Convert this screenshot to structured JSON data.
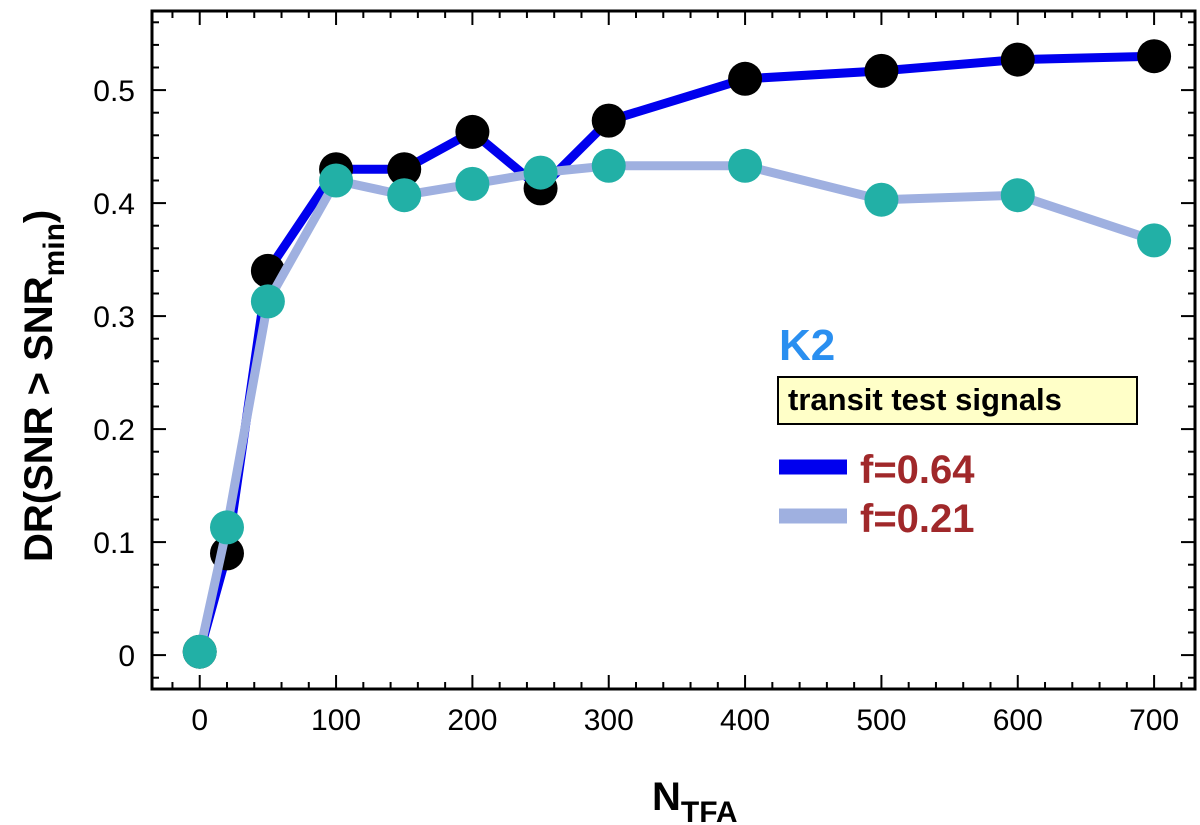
{
  "chart_data": {
    "type": "line",
    "x": [
      0,
      20,
      50,
      100,
      150,
      200,
      250,
      300,
      400,
      500,
      600,
      700
    ],
    "series": [
      {
        "name": "f=0.64",
        "values": [
          0.003,
          0.09,
          0.34,
          0.43,
          0.43,
          0.463,
          0.413,
          0.473,
          0.51,
          0.517,
          0.527,
          0.53
        ],
        "line_color": "#0000ee",
        "marker_color": "#000000"
      },
      {
        "name": "f=0.21",
        "values": [
          0.003,
          0.113,
          0.313,
          0.42,
          0.407,
          0.417,
          0.427,
          0.433,
          0.433,
          0.403,
          0.407,
          0.367
        ],
        "line_color": "#9fb0e0",
        "marker_color": "#22b0a6"
      }
    ],
    "xlabel": {
      "main": "N",
      "sub": "TFA"
    },
    "ylabel": {
      "main": "DR(SNR > SNR",
      "sub": "min",
      "close": ")"
    },
    "xlim": [
      -35,
      730
    ],
    "ylim": [
      -0.03,
      0.57
    ],
    "xticks": [
      0,
      100,
      200,
      300,
      400,
      500,
      600,
      700
    ],
    "yticks": [
      0,
      0.1,
      0.2,
      0.3,
      0.4,
      0.5
    ],
    "ytick_labels": [
      "0",
      "0.1",
      "0.2",
      "0.3",
      "0.4",
      "0.5"
    ],
    "annotations": {
      "dataset": "K2",
      "dataset_color": "#2a8ff0",
      "box_text": "transit test signals",
      "box_fill": "#ffffc8"
    },
    "legend_text_color": "#a0282a",
    "legend": "right"
  }
}
